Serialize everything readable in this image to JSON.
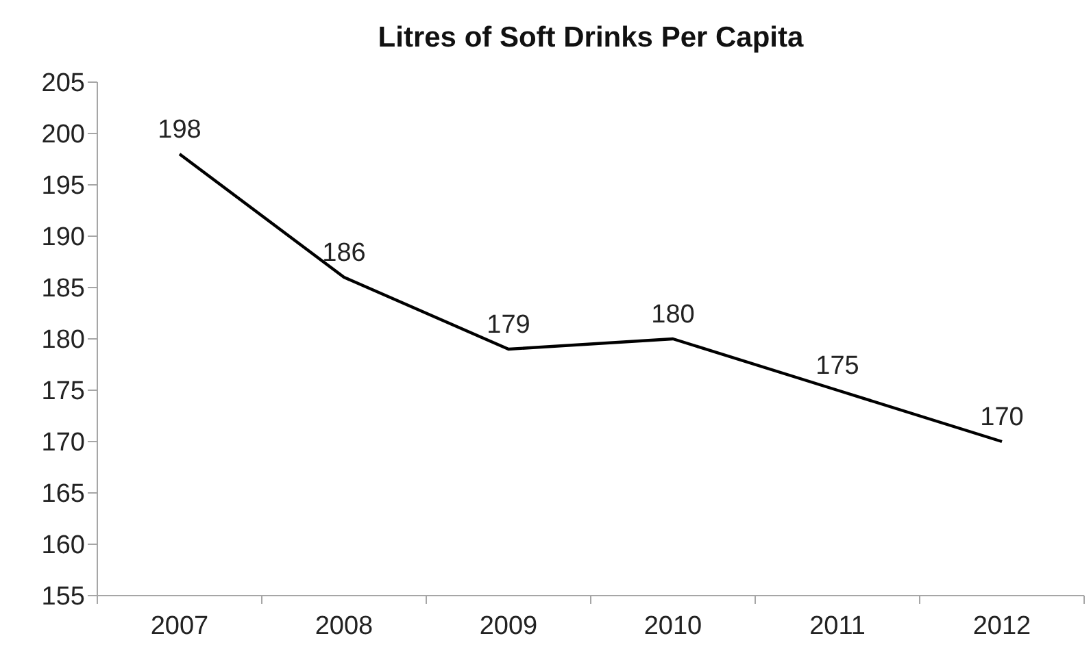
{
  "chart_data": {
    "type": "line",
    "title": "Litres of Soft Drinks Per Capita",
    "categories": [
      "2007",
      "2008",
      "2009",
      "2010",
      "2011",
      "2012"
    ],
    "values": [
      198,
      186,
      179,
      180,
      175,
      170
    ],
    "color": "#000000",
    "ylim": [
      155,
      205
    ],
    "yticks": [
      155,
      160,
      165,
      170,
      175,
      180,
      185,
      190,
      195,
      200,
      205
    ],
    "data_labels": true
  }
}
